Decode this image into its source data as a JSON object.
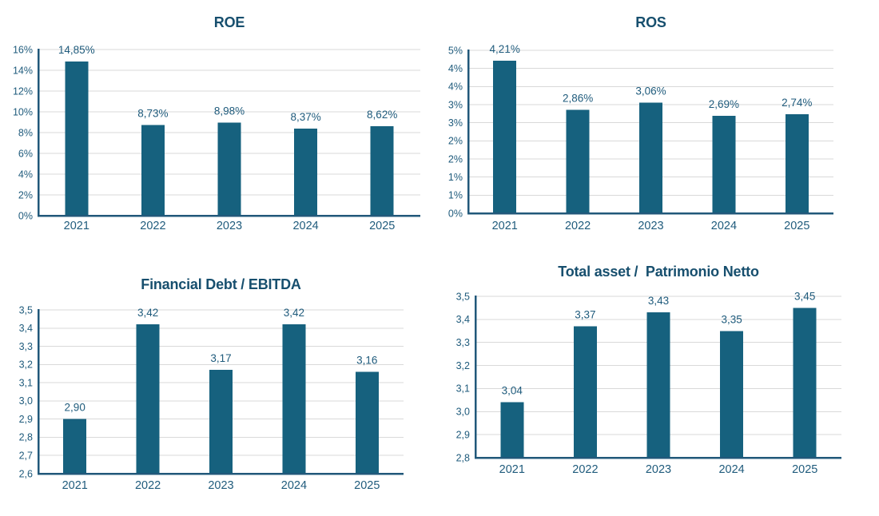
{
  "colors": {
    "bar": "#16617e",
    "title": "#174f6e",
    "text": "#1f5b7c",
    "axis": "#21587a",
    "grid": "#d9d9d9",
    "background": "#ffffff"
  },
  "chart_data": [
    {
      "type": "bar",
      "title": "ROE",
      "categories": [
        "2021",
        "2022",
        "2023",
        "2024",
        "2025"
      ],
      "values": [
        14.85,
        8.73,
        8.98,
        8.37,
        8.62
      ],
      "value_labels": [
        "14,85%",
        "8,73%",
        "8,98%",
        "8,37%",
        "8,62%"
      ],
      "ylim": [
        0,
        16
      ],
      "yticks": [
        {
          "v": 0,
          "label": "0%"
        },
        {
          "v": 2,
          "label": "2%"
        },
        {
          "v": 4,
          "label": "4%"
        },
        {
          "v": 6,
          "label": "6%"
        },
        {
          "v": 8,
          "label": "8%"
        },
        {
          "v": 10,
          "label": "10%"
        },
        {
          "v": 12,
          "label": "12%"
        },
        {
          "v": 14,
          "label": "14%"
        },
        {
          "v": 16,
          "label": "16%"
        }
      ],
      "grid": true,
      "legend": "none"
    },
    {
      "type": "bar",
      "title": "ROS",
      "categories": [
        "2021",
        "2022",
        "2023",
        "2024",
        "2025"
      ],
      "values": [
        4.21,
        2.86,
        3.06,
        2.69,
        2.74
      ],
      "value_labels": [
        "4,21%",
        "2,86%",
        "3,06%",
        "2,69%",
        "2,74%"
      ],
      "ylim": [
        0,
        4.5
      ],
      "yticks": [
        {
          "v": 0,
          "label": "0%"
        },
        {
          "v": 0.5,
          "label": "1%"
        },
        {
          "v": 1,
          "label": "1%"
        },
        {
          "v": 1.5,
          "label": "2%"
        },
        {
          "v": 2,
          "label": "2%"
        },
        {
          "v": 2.5,
          "label": "3%"
        },
        {
          "v": 3,
          "label": "3%"
        },
        {
          "v": 3.5,
          "label": "4%"
        },
        {
          "v": 4,
          "label": "4%"
        },
        {
          "v": 4.5,
          "label": "5%"
        }
      ],
      "grid": true,
      "legend": "none"
    },
    {
      "type": "bar",
      "title": "Financial Debt / EBITDA",
      "categories": [
        "2021",
        "2022",
        "2023",
        "2024",
        "2025"
      ],
      "values": [
        2.9,
        3.42,
        3.17,
        3.42,
        3.16
      ],
      "value_labels": [
        "2,90",
        "3,42",
        "3,17",
        "3,42",
        "3,16"
      ],
      "ylim": [
        2.6,
        3.5
      ],
      "yticks": [
        {
          "v": 2.6,
          "label": "2,6"
        },
        {
          "v": 2.7,
          "label": "2,7"
        },
        {
          "v": 2.8,
          "label": "2,8"
        },
        {
          "v": 2.9,
          "label": "2,9"
        },
        {
          "v": 3.0,
          "label": "3,0"
        },
        {
          "v": 3.1,
          "label": "3,1"
        },
        {
          "v": 3.2,
          "label": "3,2"
        },
        {
          "v": 3.3,
          "label": "3,3"
        },
        {
          "v": 3.4,
          "label": "3,4"
        },
        {
          "v": 3.5,
          "label": "3,5"
        }
      ],
      "grid": true,
      "legend": "none"
    },
    {
      "type": "bar",
      "title": "Total asset /  Patrimonio Netto",
      "categories": [
        "2021",
        "2022",
        "2023",
        "2024",
        "2025"
      ],
      "values": [
        3.04,
        3.37,
        3.43,
        3.35,
        3.45
      ],
      "value_labels": [
        "3,04",
        "3,37",
        "3,43",
        "3,35",
        "3,45"
      ],
      "ylim": [
        2.8,
        3.5
      ],
      "yticks": [
        {
          "v": 2.8,
          "label": "2,8"
        },
        {
          "v": 2.9,
          "label": "2,9"
        },
        {
          "v": 3.0,
          "label": "3,0"
        },
        {
          "v": 3.1,
          "label": "3,1"
        },
        {
          "v": 3.2,
          "label": "3,2"
        },
        {
          "v": 3.3,
          "label": "3,3"
        },
        {
          "v": 3.4,
          "label": "3,4"
        },
        {
          "v": 3.5,
          "label": "3,5"
        }
      ],
      "grid": true,
      "legend": "none"
    }
  ]
}
